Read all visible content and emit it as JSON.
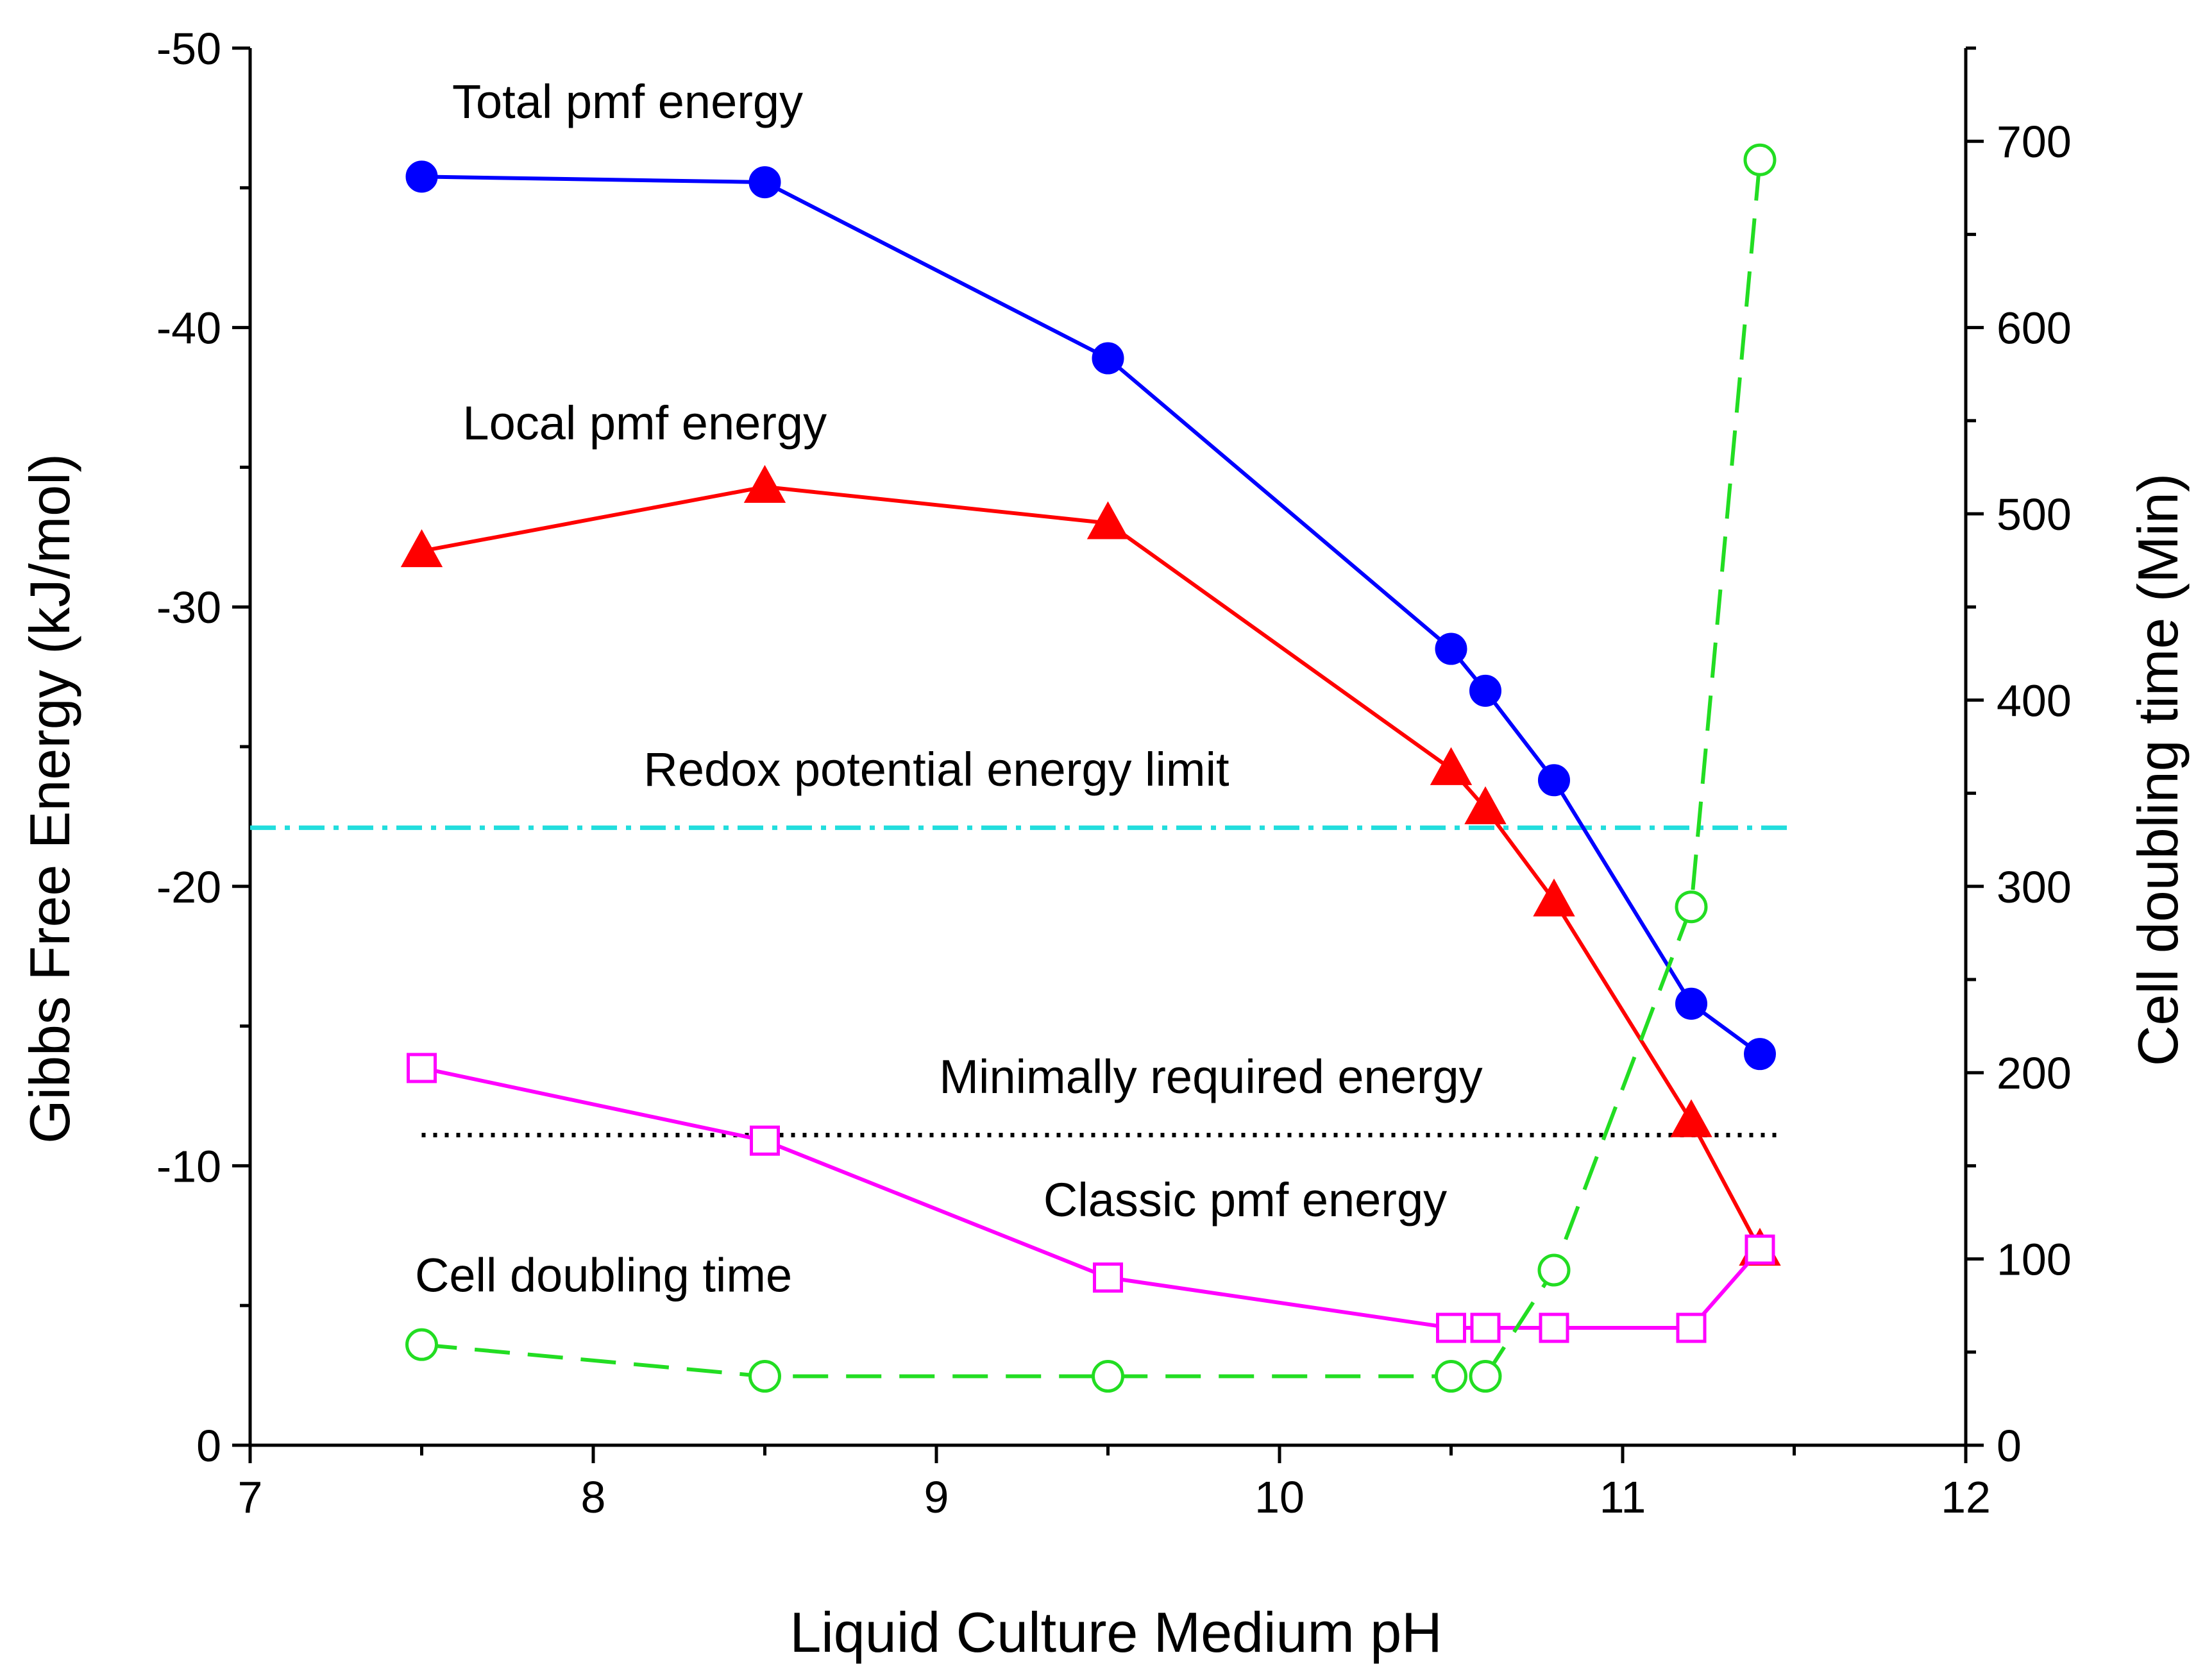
{
  "chart_data": {
    "type": "line",
    "xlabel": "Liquid Culture Medium pH",
    "ylabel_left": "Gibbs Free Energy (kJ/mol)",
    "ylabel_right": "Cell doubling time (Min)",
    "xlim": [
      7,
      12
    ],
    "ylim_left": [
      0,
      -50
    ],
    "ylim_right": [
      0,
      750
    ],
    "x_ticks": [
      "7",
      "8",
      "9",
      "10",
      "11",
      "12"
    ],
    "y_left_ticks": [
      "0",
      "-10",
      "-20",
      "-30",
      "-40",
      "-50"
    ],
    "y_right_ticks": [
      "0",
      "100",
      "200",
      "300",
      "400",
      "500",
      "600",
      "700"
    ],
    "grid": false,
    "series": [
      {
        "name": "Total pmf energy",
        "axis": "left",
        "color": "#0000ff",
        "marker": "filled-circle",
        "line": "solid",
        "x": [
          7.5,
          8.5,
          9.5,
          10.5,
          10.6,
          10.8,
          11.2,
          11.4
        ],
        "y": [
          -45.4,
          -45.2,
          -38.9,
          -28.5,
          -27.0,
          -23.8,
          -15.8,
          -14.0
        ]
      },
      {
        "name": "Local pmf energy",
        "axis": "left",
        "color": "#ff0000",
        "marker": "filled-triangle",
        "line": "solid",
        "x": [
          7.5,
          8.5,
          9.5,
          10.5,
          10.6,
          10.8,
          11.2,
          11.4
        ],
        "y": [
          -32.0,
          -34.3,
          -33.0,
          -24.2,
          -22.8,
          -19.5,
          -11.6,
          -7.0
        ]
      },
      {
        "name": "Classic pmf energy",
        "axis": "left",
        "color": "#ff00ff",
        "marker": "open-square",
        "line": "solid",
        "x": [
          7.5,
          8.5,
          9.5,
          10.5,
          10.6,
          10.8,
          11.2,
          11.4
        ],
        "y": [
          -13.5,
          -10.9,
          -6.0,
          -4.2,
          -4.2,
          -4.2,
          -4.2,
          -7.0
        ]
      },
      {
        "name": "Cell doubling time",
        "axis": "right",
        "color": "#22dd22",
        "marker": "open-circle",
        "line": "dashed",
        "x": [
          7.5,
          8.5,
          9.5,
          10.5,
          10.6,
          10.8,
          11.2,
          11.4
        ],
        "y": [
          54,
          37,
          37,
          37,
          37,
          94,
          289,
          690
        ]
      }
    ],
    "reference_lines": [
      {
        "name": "Redox potential energy limit",
        "axis": "left",
        "y": -22.1,
        "color": "#22dddd",
        "style": "dash-dot"
      },
      {
        "name": "Minimally required energy",
        "axis": "left",
        "y": -11.1,
        "color": "#000000",
        "style": "dotted"
      }
    ],
    "annotations": [
      {
        "text": "Total pmf energy",
        "x": 8.1,
        "y": -47.5
      },
      {
        "text": "Local pmf energy",
        "x": 8.15,
        "y": -36.0
      },
      {
        "text": "Redox potential energy limit",
        "x": 9.0,
        "y": -23.6
      },
      {
        "text": "Minimally required energy",
        "x": 9.8,
        "y": -12.6
      },
      {
        "text": "Classic pmf energy",
        "x": 9.9,
        "y": -8.2
      },
      {
        "text": "Cell doubling time",
        "x": 8.03,
        "y": -5.5
      }
    ]
  }
}
